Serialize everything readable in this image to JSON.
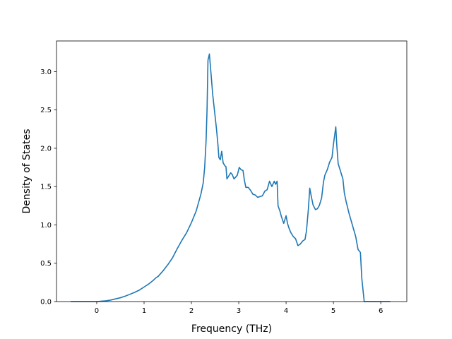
{
  "chart_data": {
    "type": "line",
    "xlabel": "Frequency (THz)",
    "ylabel": "Density of States",
    "xlim": [
      -0.85,
      6.55
    ],
    "ylim": [
      0.0,
      3.4
    ],
    "x_ticks": [
      0,
      1,
      2,
      3,
      4,
      5,
      6
    ],
    "y_ticks": [
      0.0,
      0.5,
      1.0,
      1.5,
      2.0,
      2.5,
      3.0
    ],
    "x_tick_labels": [
      "0",
      "1",
      "2",
      "3",
      "4",
      "5",
      "6"
    ],
    "y_tick_labels": [
      "0.0",
      "0.5",
      "1.0",
      "1.5",
      "2.0",
      "2.5",
      "3.0"
    ],
    "grid": false,
    "line_color": "#1f77b4",
    "series": [
      {
        "x": [
          -0.55,
          -0.3,
          0.0,
          0.1,
          0.2,
          0.3,
          0.4,
          0.5,
          0.6,
          0.7,
          0.8,
          0.9,
          1.0,
          1.1,
          1.2,
          1.25,
          1.3,
          1.4,
          1.5,
          1.6,
          1.65,
          1.7,
          1.8,
          1.9,
          2.0,
          2.1,
          2.2,
          2.25,
          2.28,
          2.31,
          2.33,
          2.35,
          2.38,
          2.45,
          2.53,
          2.56,
          2.58,
          2.61,
          2.64,
          2.67,
          2.71,
          2.73,
          2.75,
          2.79,
          2.83,
          2.86,
          2.9,
          2.93,
          2.97,
          3.01,
          3.05,
          3.09,
          3.12,
          3.15,
          3.2,
          3.25,
          3.3,
          3.35,
          3.4,
          3.45,
          3.5,
          3.55,
          3.6,
          3.65,
          3.7,
          3.75,
          3.78,
          3.81,
          3.83,
          3.87,
          3.9,
          3.95,
          4.0,
          4.03,
          4.06,
          4.1,
          4.15,
          4.2,
          4.25,
          4.3,
          4.35,
          4.4,
          4.43,
          4.47,
          4.5,
          4.53,
          4.57,
          4.62,
          4.66,
          4.7,
          4.75,
          4.79,
          4.82,
          4.87,
          4.92,
          4.97,
          5.0,
          5.05,
          5.07,
          5.1,
          5.15,
          5.2,
          5.23,
          5.27,
          5.33,
          5.4,
          5.47,
          5.52,
          5.57,
          5.6,
          5.65,
          5.7,
          5.8,
          6.0,
          6.2
        ],
        "y": [
          0.0,
          0.0,
          0.0,
          0.005,
          0.01,
          0.02,
          0.035,
          0.05,
          0.07,
          0.095,
          0.12,
          0.15,
          0.19,
          0.23,
          0.28,
          0.31,
          0.33,
          0.4,
          0.48,
          0.57,
          0.63,
          0.69,
          0.8,
          0.9,
          1.03,
          1.18,
          1.4,
          1.55,
          1.75,
          2.1,
          2.5,
          3.15,
          3.23,
          2.7,
          2.25,
          2.05,
          1.88,
          1.85,
          1.96,
          1.81,
          1.77,
          1.76,
          1.6,
          1.64,
          1.68,
          1.66,
          1.6,
          1.62,
          1.65,
          1.75,
          1.72,
          1.71,
          1.58,
          1.49,
          1.49,
          1.45,
          1.4,
          1.39,
          1.36,
          1.37,
          1.38,
          1.44,
          1.46,
          1.57,
          1.5,
          1.57,
          1.53,
          1.57,
          1.25,
          1.18,
          1.11,
          1.02,
          1.12,
          1.02,
          0.96,
          0.9,
          0.85,
          0.82,
          0.73,
          0.75,
          0.79,
          0.81,
          0.92,
          1.2,
          1.48,
          1.38,
          1.26,
          1.2,
          1.21,
          1.25,
          1.35,
          1.56,
          1.65,
          1.72,
          1.82,
          1.88,
          2.05,
          2.28,
          2.05,
          1.8,
          1.7,
          1.6,
          1.42,
          1.3,
          1.15,
          1.0,
          0.85,
          0.68,
          0.64,
          0.3,
          0.0,
          0.0,
          0.0,
          0.0,
          0.0
        ]
      }
    ]
  }
}
